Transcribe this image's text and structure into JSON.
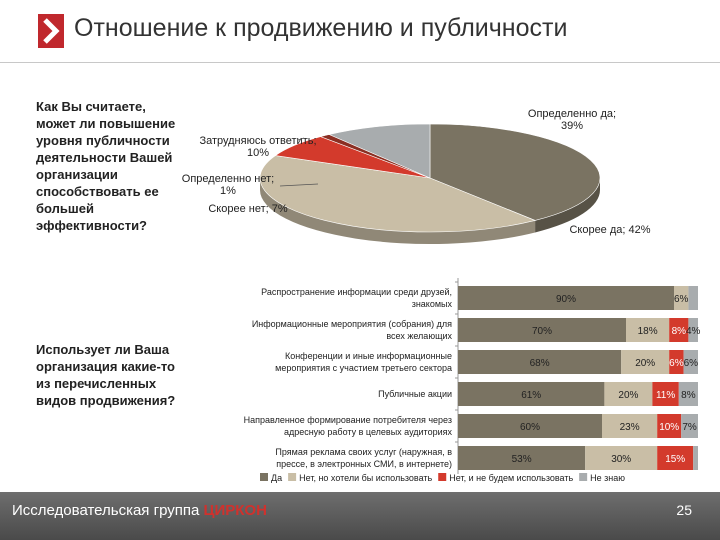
{
  "title": "Отношение к продвижению и публичности",
  "question1": "Как Вы считаете, может ли повышение уровня публичности деятельности Вашей организации способствовать ее большей эффективности?",
  "question2": "Использует ли Ваша организация какие-то из перечисленных видов продвижения?",
  "footer": {
    "brand_prefix": "Исследовательская группа ",
    "brand_name": "ЦИРКОН",
    "page": "25"
  },
  "colors": {
    "accent": "#c0282d",
    "yes": "#7a7362",
    "no_but_want": "#c9bea6",
    "no_wont": "#d33a2c",
    "dont_know": "#a8acae",
    "small_slice": "#8b2f23"
  },
  "chart_data": [
    {
      "type": "pie",
      "slices": [
        {
          "name": "Определенно да",
          "value": 39,
          "label": "Определенно да; 39%",
          "color": "#7a7362"
        },
        {
          "name": "Скорее да",
          "value": 42,
          "label": "Скорее да; 42%",
          "color": "#c9bea6"
        },
        {
          "name": "Скорее нет",
          "value": 7,
          "label": "Скорее нет; 7%",
          "color": "#d33a2c"
        },
        {
          "name": "Определенно нет",
          "value": 1,
          "label": "Определенно нет; 1%",
          "color": "#8b2f23"
        },
        {
          "name": "Затрудняюсь ответить",
          "value": 10,
          "label": "Затрудняюсь ответить; 10%",
          "color": "#a8acae"
        }
      ]
    },
    {
      "type": "bar",
      "orientation": "horizontal",
      "stacked": true,
      "categories": [
        "Распространение информации среди друзей, знакомых",
        "Информационные мероприятия (собрания) для всех желающих",
        "Конференции и иные информационные мероприятия с участием третьего сектора",
        "Публичные акции",
        "Направленное формирование потребителя через адресную работу в целевых аудиториях",
        "Прямая реклама своих услуг (наружная, в прессе, в электронных СМИ, в интернете)"
      ],
      "series": [
        {
          "name": "Да",
          "values": [
            90,
            70,
            68,
            61,
            60,
            53
          ],
          "labels": [
            "90%",
            "70%",
            "68%",
            "61%",
            "60%",
            "53%"
          ],
          "color": "#7a7362"
        },
        {
          "name": "Нет, но хотели бы использовать",
          "values": [
            6,
            18,
            20,
            20,
            23,
            30
          ],
          "labels": [
            "6%",
            "18%",
            "20%",
            "20%",
            "23%",
            "30%"
          ],
          "color": "#c9bea6"
        },
        {
          "name": "Нет, и не будем использовать",
          "values": [
            0,
            8,
            6,
            11,
            10,
            15
          ],
          "labels": [
            "",
            "8%",
            "6%",
            "11%",
            "10%",
            "15%"
          ],
          "color": "#d33a2c"
        },
        {
          "name": "Не знаю",
          "values": [
            4,
            4,
            6,
            8,
            7,
            2
          ],
          "labels": [
            "",
            "4%",
            "6%",
            "8%",
            "7%",
            ""
          ],
          "color": "#a8acae"
        }
      ],
      "legend": "bottom"
    }
  ]
}
